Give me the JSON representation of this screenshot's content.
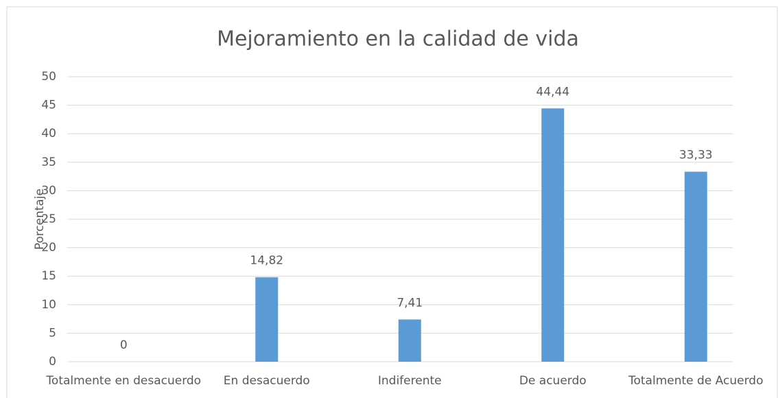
{
  "chart_data": {
    "type": "bar",
    "title": "Mejoramiento en la calidad de vida",
    "y_label": "Porcentaje",
    "categories": [
      "Totalmente en desacuerdo",
      "En desacuerdo",
      "Indiferente",
      "De acuerdo",
      "Totalmente de Acuerdo"
    ],
    "values": [
      0,
      14.82,
      7.41,
      44.44,
      33.33
    ],
    "value_labels": [
      "0",
      "14,82",
      "7,41",
      "44,44",
      "33,33"
    ],
    "color": "#5b9bd5",
    "ylim": [
      0,
      50
    ],
    "yticks": [
      0,
      5,
      10,
      15,
      20,
      25,
      30,
      35,
      40,
      45,
      50
    ],
    "grid": true
  }
}
